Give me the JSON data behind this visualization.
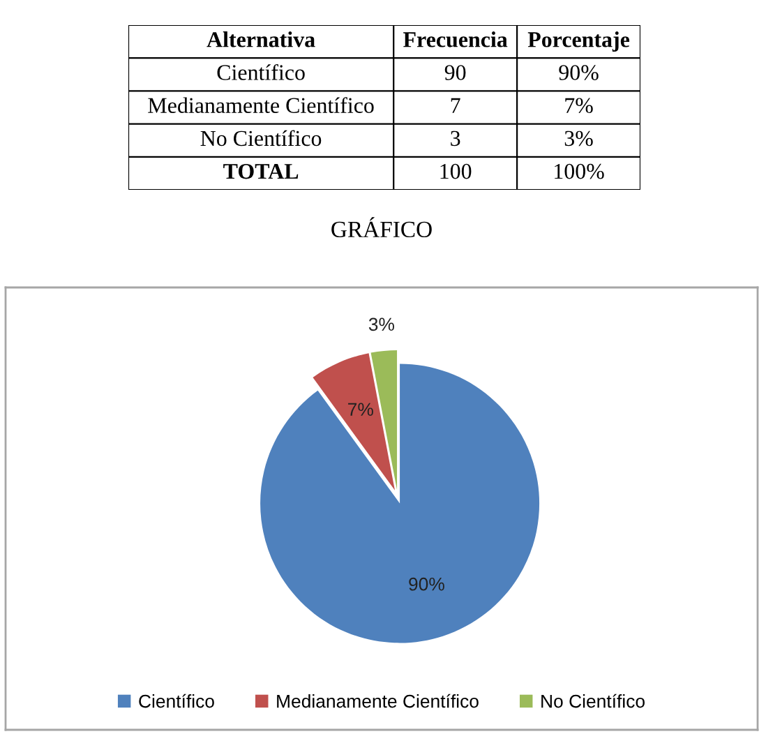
{
  "chart_data": [
    {
      "type": "other",
      "ylabel": "Alternativa",
      "categories": [
        "Científico",
        "Medianamente Científico",
        "No Científico"
      ],
      "series": [
        {
          "name": "Frecuencia",
          "values": [
            90,
            7,
            3
          ]
        },
        {
          "name": "Porcentaje",
          "values": [
            90,
            7,
            3
          ],
          "value_labels": [
            "90%",
            "7%",
            "3%"
          ]
        }
      ],
      "data_labels": true,
      "totals": [
        "TOTAL",
        "100",
        "100%"
      ]
    },
    {
      "type": "pie",
      "title": "GRÁFICO",
      "categories": [
        "Científico",
        "Medianamente Científico",
        "No Científico"
      ],
      "values": [
        90,
        7,
        3
      ],
      "colors": [
        "#4f81bd",
        "#c0504d",
        "#9bbb59"
      ],
      "value_labels": [
        "90%",
        "7%",
        "3%"
      ],
      "legend": "bottom"
    }
  ]
}
